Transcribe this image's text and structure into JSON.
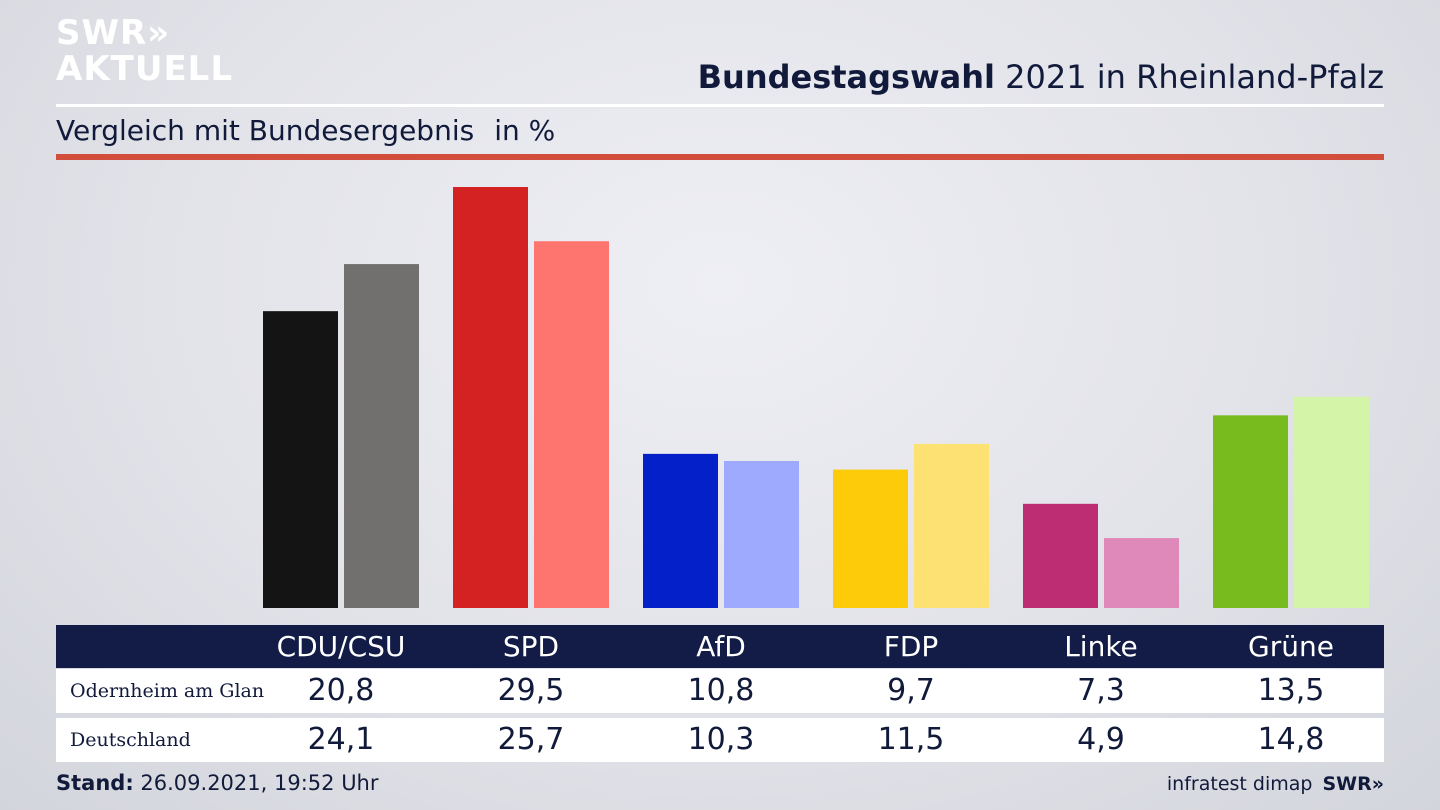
{
  "logo": {
    "line1": "SWR»",
    "line2": "AKTUELL"
  },
  "header": {
    "title_bold": "Bundestagswahl",
    "title_rest": "2021 in Rheinland-Pfalz",
    "subtitle": "Vergleich mit Bundesergebnis",
    "unit": "in %"
  },
  "colors": {
    "local": [
      "#141414",
      "#d42121",
      "#0420c8",
      "#fecb0a",
      "#bd2d74",
      "#78bb1e"
    ],
    "national": [
      "#72706e",
      "#fe7570",
      "#9eaafe",
      "#fde172",
      "#df89bb",
      "#d4f5a8"
    ],
    "rule_red": "#d24d3c",
    "table_header": "#121c46"
  },
  "chart_data": {
    "type": "bar",
    "categories": [
      "CDU/CSU",
      "SPD",
      "AfD",
      "FDP",
      "Linke",
      "Grüne"
    ],
    "series": [
      {
        "name": "Odernheim am Glan",
        "values": [
          20.8,
          29.5,
          10.8,
          9.7,
          7.3,
          13.5
        ]
      },
      {
        "name": "Deutschland",
        "values": [
          24.1,
          25.7,
          10.3,
          11.5,
          4.9,
          14.8
        ]
      }
    ],
    "value_labels": [
      [
        "20,8",
        "29,5",
        "10,8",
        "9,7",
        "7,3",
        "13,5"
      ],
      [
        "24,1",
        "25,7",
        "10,3",
        "11,5",
        "4,9",
        "14,8"
      ]
    ],
    "ylim": [
      0,
      29.5
    ],
    "grid": false,
    "legend": "table-below"
  },
  "footer": {
    "stand_label": "Stand:",
    "stand_value": "26.09.2021, 19:52 Uhr",
    "source": "infratest dimap",
    "source_logo": "SWR»"
  }
}
